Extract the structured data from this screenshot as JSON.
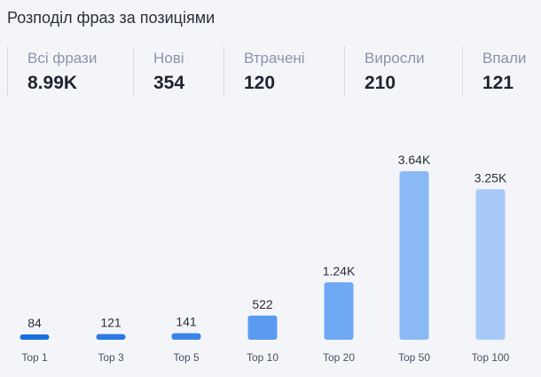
{
  "header": {
    "title": "Розподіл фраз за позиціями"
  },
  "stats": [
    {
      "label": "Всі фрази",
      "value": "8.99K"
    },
    {
      "label": "Нові",
      "value": "354"
    },
    {
      "label": "Втрачені",
      "value": "120"
    },
    {
      "label": "Виросли",
      "value": "210"
    },
    {
      "label": "Впали",
      "value": "121"
    }
  ],
  "chart_data": {
    "type": "bar",
    "categories": [
      "Top 1",
      "Top 3",
      "Top 5",
      "Top 10",
      "Top 20",
      "Top 50",
      "Top 100"
    ],
    "values": [
      84,
      121,
      141,
      522,
      1240,
      3640,
      3250
    ],
    "value_labels": [
      "84",
      "121",
      "141",
      "522",
      "1.24K",
      "3.64K",
      "3.25K"
    ],
    "colors": [
      "#1a6fe0",
      "#2a79e6",
      "#3a84ea",
      "#5a9af0",
      "#6fa8f3",
      "#8bb9f6",
      "#a7caf8"
    ],
    "ylim": [
      0,
      3640
    ],
    "grid": false,
    "legend": "none"
  }
}
